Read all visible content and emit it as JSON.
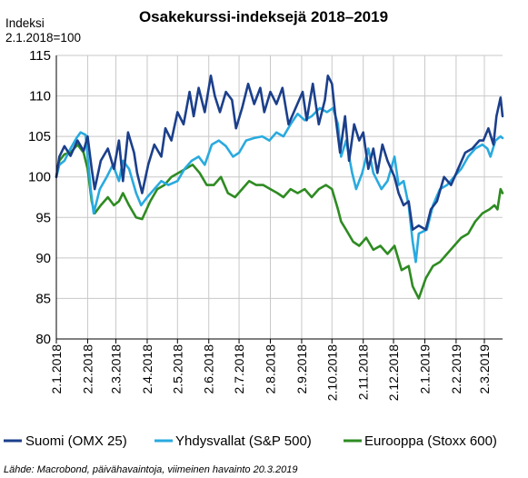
{
  "chart_data": {
    "type": "line",
    "title": "Osakekurssi-indeksejä 2018–2019",
    "ylabel_lines": [
      "Indeksi",
      "2.1.2018=100"
    ],
    "ylim": [
      80,
      115
    ],
    "yticks": [
      80,
      85,
      90,
      95,
      100,
      105,
      110,
      115
    ],
    "xlim": [
      "2018-01-02",
      "2019-03-20"
    ],
    "xtick_dates": [
      "2018-01-02",
      "2018-02-02",
      "2018-03-02",
      "2018-04-02",
      "2018-05-02",
      "2018-06-02",
      "2018-07-02",
      "2018-08-02",
      "2018-09-02",
      "2018-10-02",
      "2018-11-02",
      "2018-12-02",
      "2019-01-02",
      "2019-02-02",
      "2019-03-02"
    ],
    "xtick_labels": [
      "2.1.2018",
      "2.2.2018",
      "2.3.2018",
      "2.4.2018",
      "2.5.2018",
      "2.6.2018",
      "2.7.2018",
      "2.8.2018",
      "2.9.2018",
      "2.10.2018",
      "2.11.2018",
      "2.12.2018",
      "2.1.2019",
      "2.2.2019",
      "2.3.2019"
    ],
    "grid": true,
    "legend_position": "bottom",
    "series": [
      {
        "name": "Suomi (OMX 25)",
        "color": "#1b3f8b",
        "x": [
          "2018-01-02",
          "2018-01-05",
          "2018-01-10",
          "2018-01-16",
          "2018-01-23",
          "2018-01-29",
          "2018-02-02",
          "2018-02-06",
          "2018-02-09",
          "2018-02-15",
          "2018-02-22",
          "2018-02-28",
          "2018-03-05",
          "2018-03-09",
          "2018-03-14",
          "2018-03-20",
          "2018-03-23",
          "2018-03-28",
          "2018-04-03",
          "2018-04-09",
          "2018-04-16",
          "2018-04-20",
          "2018-04-26",
          "2018-05-02",
          "2018-05-08",
          "2018-05-14",
          "2018-05-18",
          "2018-05-23",
          "2018-05-29",
          "2018-06-04",
          "2018-06-08",
          "2018-06-13",
          "2018-06-19",
          "2018-06-25",
          "2018-06-29",
          "2018-07-05",
          "2018-07-11",
          "2018-07-17",
          "2018-07-23",
          "2018-07-27",
          "2018-08-02",
          "2018-08-08",
          "2018-08-14",
          "2018-08-20",
          "2018-08-27",
          "2018-09-03",
          "2018-09-07",
          "2018-09-13",
          "2018-09-19",
          "2018-09-25",
          "2018-09-28",
          "2018-10-02",
          "2018-10-05",
          "2018-10-10",
          "2018-10-15",
          "2018-10-19",
          "2018-10-24",
          "2018-10-29",
          "2018-11-02",
          "2018-11-07",
          "2018-11-12",
          "2018-11-16",
          "2018-11-21",
          "2018-11-26",
          "2018-12-03",
          "2018-12-07",
          "2018-12-12",
          "2018-12-17",
          "2018-12-21",
          "2018-12-27",
          "2019-01-03",
          "2019-01-08",
          "2019-01-14",
          "2019-01-21",
          "2019-01-28",
          "2019-02-04",
          "2019-02-11",
          "2019-02-18",
          "2019-02-25",
          "2019-03-01",
          "2019-03-06",
          "2019-03-11",
          "2019-03-14",
          "2019-03-18",
          "2019-03-20"
        ],
        "y": [
          100.0,
          102.5,
          103.8,
          102.6,
          104.5,
          103.2,
          105.0,
          101.0,
          98.5,
          102.0,
          103.5,
          101.0,
          104.5,
          99.5,
          105.5,
          103.0,
          100.5,
          98.0,
          101.5,
          104.0,
          102.5,
          106.0,
          104.5,
          108.0,
          106.5,
          110.5,
          107.5,
          111.0,
          108.0,
          112.5,
          110.0,
          108.0,
          110.5,
          109.5,
          106.0,
          108.5,
          111.5,
          109.0,
          111.0,
          108.0,
          110.5,
          109.0,
          111.0,
          106.5,
          108.5,
          110.5,
          107.0,
          111.5,
          106.5,
          109.5,
          112.5,
          111.5,
          108.0,
          103.0,
          107.5,
          102.0,
          106.5,
          104.5,
          105.5,
          101.0,
          103.5,
          100.5,
          104.0,
          102.0,
          100.0,
          98.0,
          96.5,
          97.0,
          93.5,
          94.0,
          93.5,
          96.0,
          97.0,
          100.0,
          99.0,
          101.0,
          103.0,
          103.5,
          104.5,
          104.5,
          106.0,
          104.0,
          107.5,
          109.8,
          107.5
        ]
      },
      {
        "name": "Yhdysvallat (S&P 500)",
        "color": "#29aadf",
        "x": [
          "2018-01-02",
          "2018-01-05",
          "2018-01-10",
          "2018-01-16",
          "2018-01-22",
          "2018-01-26",
          "2018-01-31",
          "2018-02-05",
          "2018-02-08",
          "2018-02-14",
          "2018-02-21",
          "2018-02-27",
          "2018-03-05",
          "2018-03-09",
          "2018-03-15",
          "2018-03-22",
          "2018-03-27",
          "2018-04-02",
          "2018-04-09",
          "2018-04-16",
          "2018-04-23",
          "2018-05-02",
          "2018-05-09",
          "2018-05-16",
          "2018-05-23",
          "2018-05-29",
          "2018-06-05",
          "2018-06-12",
          "2018-06-19",
          "2018-06-26",
          "2018-07-02",
          "2018-07-09",
          "2018-07-17",
          "2018-07-25",
          "2018-08-01",
          "2018-08-08",
          "2018-08-15",
          "2018-08-22",
          "2018-08-29",
          "2018-09-05",
          "2018-09-12",
          "2018-09-20",
          "2018-09-27",
          "2018-10-03",
          "2018-10-08",
          "2018-10-11",
          "2018-10-16",
          "2018-10-22",
          "2018-10-26",
          "2018-11-01",
          "2018-11-07",
          "2018-11-12",
          "2018-11-20",
          "2018-11-26",
          "2018-12-03",
          "2018-12-07",
          "2018-12-12",
          "2018-12-17",
          "2018-12-21",
          "2018-12-24",
          "2018-12-27",
          "2019-01-04",
          "2019-01-10",
          "2019-01-17",
          "2019-01-24",
          "2019-01-31",
          "2019-02-07",
          "2019-02-14",
          "2019-02-21",
          "2019-02-28",
          "2019-03-05",
          "2019-03-08",
          "2019-03-13",
          "2019-03-18",
          "2019-03-20"
        ],
        "y": [
          100.0,
          101.5,
          102.0,
          103.5,
          104.8,
          105.5,
          105.2,
          98.5,
          95.5,
          98.5,
          100.0,
          101.5,
          99.5,
          102.0,
          101.0,
          98.0,
          96.5,
          97.5,
          98.5,
          99.5,
          99.0,
          99.5,
          101.0,
          102.0,
          102.5,
          101.5,
          104.0,
          104.5,
          103.8,
          102.5,
          103.0,
          104.5,
          104.8,
          105.0,
          104.5,
          105.5,
          105.0,
          106.5,
          107.8,
          107.0,
          107.5,
          108.5,
          108.0,
          108.5,
          106.5,
          102.5,
          104.5,
          100.5,
          98.5,
          100.5,
          103.5,
          100.5,
          98.5,
          99.5,
          102.5,
          99.0,
          99.5,
          96.5,
          92.0,
          89.5,
          93.0,
          93.5,
          96.5,
          98.5,
          99.0,
          100.0,
          101.0,
          102.5,
          103.5,
          104.0,
          103.5,
          102.5,
          104.5,
          105.0,
          104.8
        ]
      },
      {
        "name": "Eurooppa (Stoxx 600)",
        "color": "#2e8b22",
        "x": [
          "2018-01-02",
          "2018-01-05",
          "2018-01-10",
          "2018-01-16",
          "2018-01-23",
          "2018-01-29",
          "2018-02-02",
          "2018-02-06",
          "2018-02-09",
          "2018-02-15",
          "2018-02-22",
          "2018-02-28",
          "2018-03-05",
          "2018-03-09",
          "2018-03-15",
          "2018-03-22",
          "2018-03-28",
          "2018-04-05",
          "2018-04-12",
          "2018-04-19",
          "2018-04-26",
          "2018-05-03",
          "2018-05-10",
          "2018-05-17",
          "2018-05-24",
          "2018-05-31",
          "2018-06-07",
          "2018-06-14",
          "2018-06-21",
          "2018-06-28",
          "2018-07-05",
          "2018-07-12",
          "2018-07-19",
          "2018-07-26",
          "2018-08-02",
          "2018-08-09",
          "2018-08-15",
          "2018-08-22",
          "2018-08-29",
          "2018-09-05",
          "2018-09-12",
          "2018-09-19",
          "2018-09-26",
          "2018-10-02",
          "2018-10-08",
          "2018-10-11",
          "2018-10-16",
          "2018-10-23",
          "2018-10-29",
          "2018-11-05",
          "2018-11-12",
          "2018-11-19",
          "2018-11-26",
          "2018-12-03",
          "2018-12-10",
          "2018-12-17",
          "2018-12-21",
          "2018-12-27",
          "2019-01-03",
          "2019-01-10",
          "2019-01-17",
          "2019-01-24",
          "2019-01-31",
          "2019-02-07",
          "2019-02-14",
          "2019-02-21",
          "2019-02-28",
          "2019-03-07",
          "2019-03-12",
          "2019-03-15",
          "2019-03-18",
          "2019-03-20"
        ],
        "y": [
          100.0,
          102.0,
          102.8,
          103.0,
          104.0,
          103.0,
          101.0,
          97.0,
          95.5,
          96.5,
          97.5,
          96.5,
          97.0,
          98.0,
          96.5,
          95.0,
          94.8,
          97.0,
          98.5,
          99.0,
          100.0,
          100.5,
          101.0,
          101.5,
          100.5,
          99.0,
          99.0,
          100.0,
          98.0,
          97.5,
          98.5,
          99.5,
          99.0,
          99.0,
          98.5,
          98.0,
          97.5,
          98.5,
          98.0,
          98.5,
          97.5,
          98.5,
          99.0,
          98.5,
          96.0,
          94.5,
          93.5,
          92.0,
          91.5,
          92.5,
          91.0,
          91.5,
          90.5,
          91.5,
          88.5,
          89.0,
          86.5,
          85.0,
          87.5,
          89.0,
          89.5,
          90.5,
          91.5,
          92.5,
          93.0,
          94.5,
          95.5,
          96.0,
          96.5,
          96.0,
          98.5,
          98.0
        ]
      }
    ]
  },
  "source_note": "Lähde: Macrobond, päivähavaintoja, viimeinen havainto 20.3.2019"
}
